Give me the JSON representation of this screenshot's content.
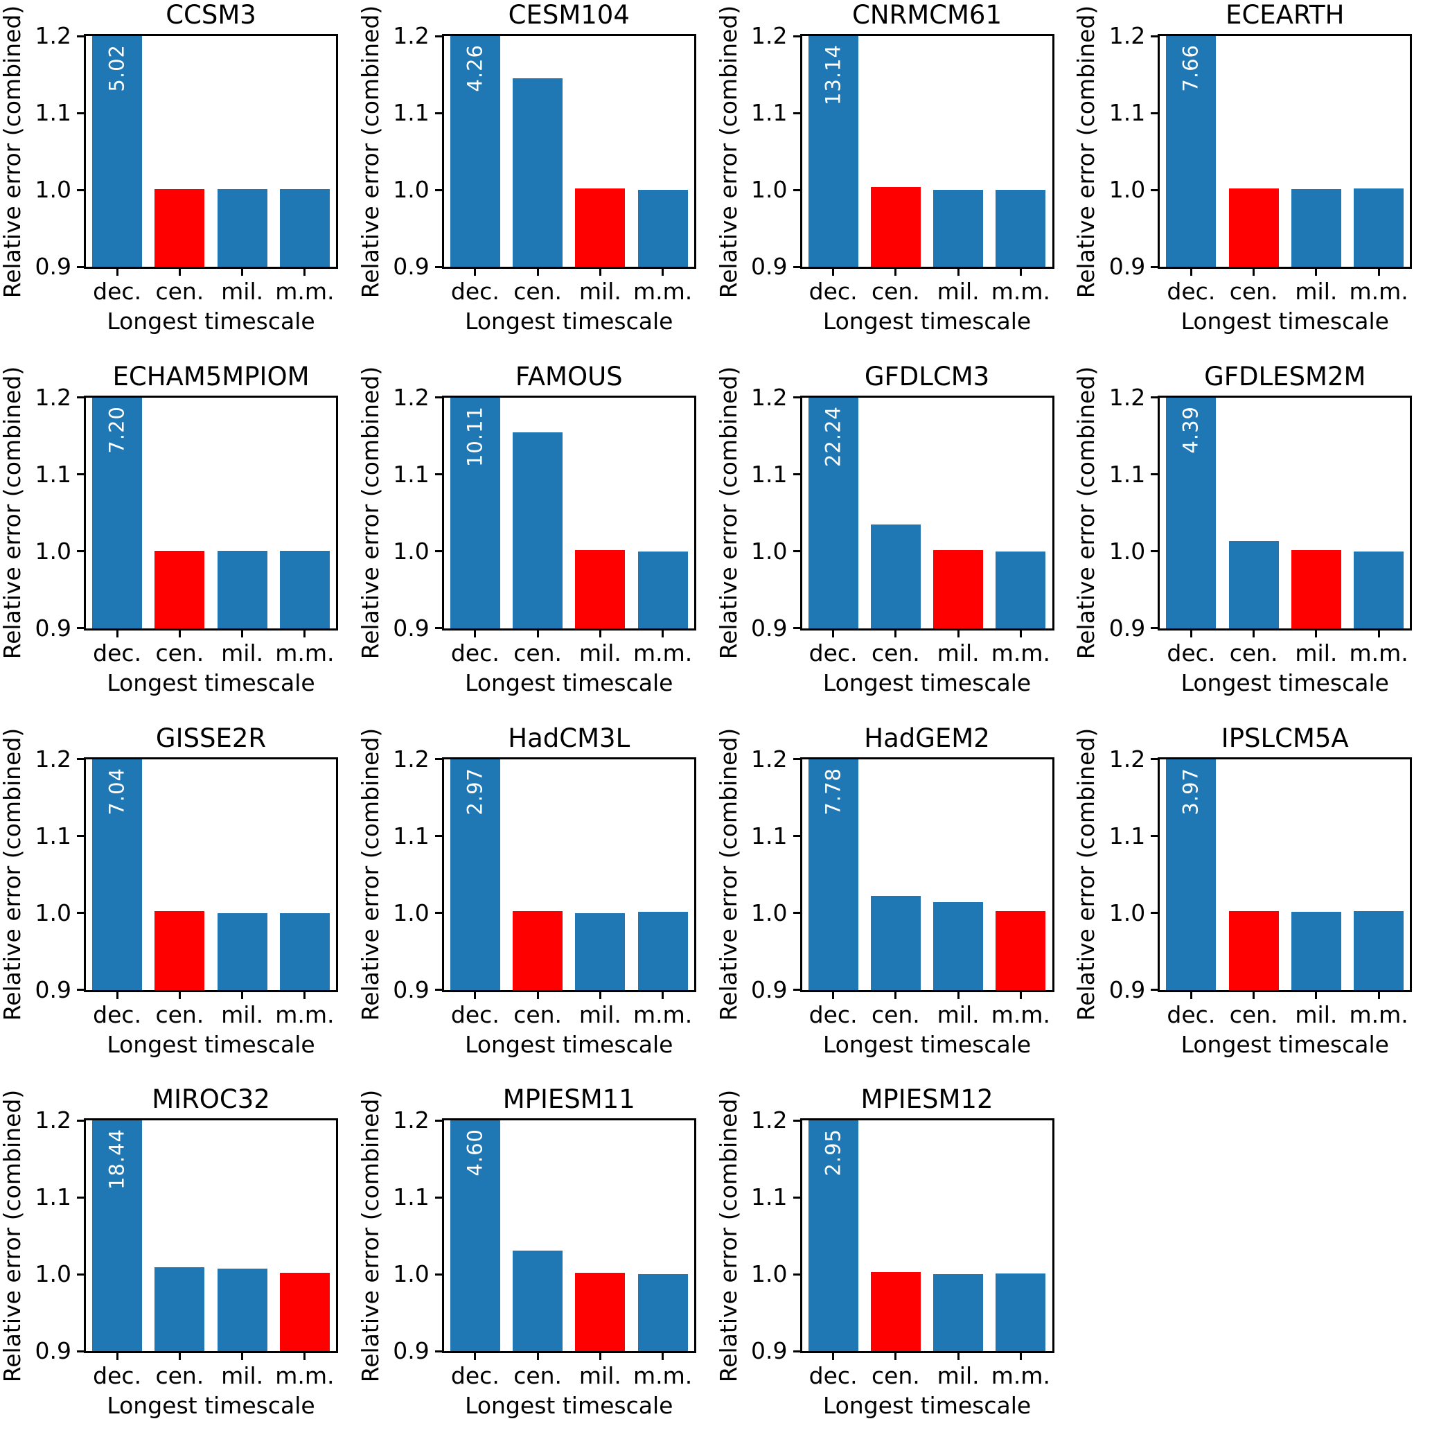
{
  "figure": {
    "ylabel": "Relative error (combined)",
    "xlabel": "Longest timescale",
    "categories": [
      "dec.",
      "cen.",
      "mil.",
      "m.m."
    ],
    "yticks": [
      "1.2",
      "1.1",
      "1.0",
      "0.9"
    ],
    "colors": {
      "bar_blue": "#1f77b4",
      "bar_red": "#ff0000",
      "axis": "#000000",
      "bar_label_text": "#ffffff"
    }
  },
  "chart_data": {
    "type": "bar",
    "grid": "4 columns x 4 rows, last cell empty",
    "categories": [
      "dec.",
      "cen.",
      "mil.",
      "m.m."
    ],
    "xlabel": "Longest timescale",
    "ylabel": "Relative error (combined)",
    "ylim": [
      0.9,
      1.2
    ],
    "yticks": [
      0.9,
      1.0,
      1.1,
      1.2
    ],
    "note": "First bar (dec.) exceeds ylim in every panel and is clipped at 1.2; its true value is printed vertically in white inside the bar. One bar per panel (red_index) is highlighted red; all other bars are blue.",
    "panels": [
      {
        "title": "CCSM3",
        "values": [
          5.02,
          1.001,
          1.001,
          1.001
        ],
        "bar_label": "5.02",
        "red_index": 1
      },
      {
        "title": "CESM104",
        "values": [
          4.26,
          1.145,
          1.002,
          1.0
        ],
        "bar_label": "4.26",
        "red_index": 2
      },
      {
        "title": "CNRMCM61",
        "values": [
          13.14,
          1.004,
          1.0,
          1.0
        ],
        "bar_label": "13.14",
        "red_index": 1
      },
      {
        "title": "ECEARTH",
        "values": [
          7.66,
          1.002,
          1.001,
          1.002
        ],
        "bar_label": "7.66",
        "red_index": 1
      },
      {
        "title": "ECHAM5MPIOM",
        "values": [
          7.2,
          1.001,
          1.001,
          1.001
        ],
        "bar_label": "7.20",
        "red_index": 1
      },
      {
        "title": "FAMOUS",
        "values": [
          10.11,
          1.155,
          1.002,
          1.0
        ],
        "bar_label": "10.11",
        "red_index": 2
      },
      {
        "title": "GFDLCM3",
        "values": [
          22.24,
          1.035,
          1.002,
          1.0
        ],
        "bar_label": "22.24",
        "red_index": 2
      },
      {
        "title": "GFDLESM2M",
        "values": [
          4.39,
          1.013,
          1.002,
          1.0
        ],
        "bar_label": "4.39",
        "red_index": 2
      },
      {
        "title": "GISSE2R",
        "values": [
          7.04,
          1.002,
          1.0,
          1.0
        ],
        "bar_label": "7.04",
        "red_index": 1
      },
      {
        "title": "HadCM3L",
        "values": [
          2.97,
          1.002,
          1.0,
          1.001
        ],
        "bar_label": "2.97",
        "red_index": 1
      },
      {
        "title": "HadGEM2",
        "values": [
          7.78,
          1.022,
          1.014,
          1.002
        ],
        "bar_label": "7.78",
        "red_index": 3
      },
      {
        "title": "IPSLCM5A",
        "values": [
          3.97,
          1.002,
          1.001,
          1.002
        ],
        "bar_label": "3.97",
        "red_index": 1
      },
      {
        "title": "MIROC32",
        "values": [
          18.44,
          1.009,
          1.007,
          1.002
        ],
        "bar_label": "18.44",
        "red_index": 3
      },
      {
        "title": "MPIESM11",
        "values": [
          4.6,
          1.031,
          1.002,
          1.0
        ],
        "bar_label": "4.60",
        "red_index": 2
      },
      {
        "title": "MPIESM12",
        "values": [
          2.95,
          1.003,
          1.0,
          1.001
        ],
        "bar_label": "2.95",
        "red_index": 1
      }
    ]
  }
}
